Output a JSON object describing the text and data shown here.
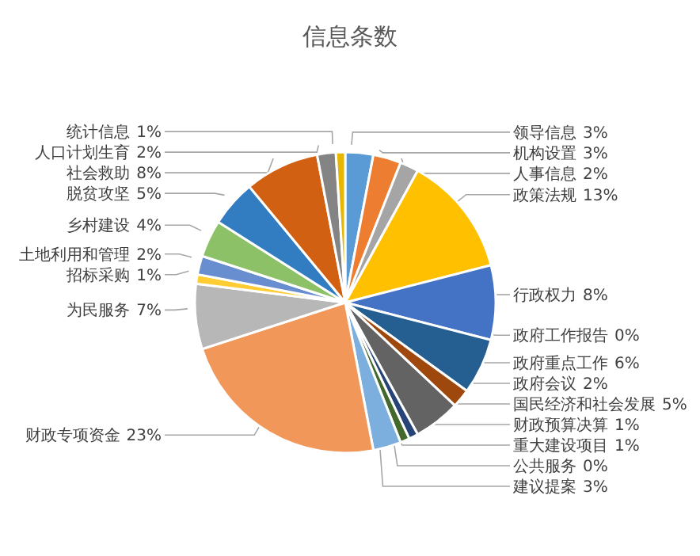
{
  "chart_data": {
    "type": "pie",
    "title": "信息条数",
    "categories": [
      "领导信息",
      "机构设置",
      "人事信息",
      "政策法规",
      "行政权力",
      "政府工作报告",
      "政府重点工作",
      "政府会议",
      "国民经济和社会发展",
      "财政预算决算",
      "重大建设项目",
      "公共服务",
      "建议提案",
      "财政专项资金",
      "为民服务",
      "招标采购",
      "土地利用和管理",
      "乡村建设",
      "脱贫攻坚",
      "社会救助",
      "人口计划生育",
      "统计信息"
    ],
    "values": [
      3,
      3,
      2,
      13,
      8,
      0,
      6,
      2,
      5,
      1,
      1,
      0,
      3,
      23,
      7,
      1,
      2,
      4,
      5,
      8,
      2,
      1
    ],
    "value_labels": [
      "3%",
      "3%",
      "2%",
      "13%",
      "8%",
      "0%",
      "6%",
      "2%",
      "5%",
      "1%",
      "1%",
      "0%",
      "3%",
      "23%",
      "7%",
      "1%",
      "2%",
      "4%",
      "5%",
      "8%",
      "2%",
      "1%"
    ],
    "colors": [
      "#5b9bd5",
      "#ed7d31",
      "#a5a5a5",
      "#ffc000",
      "#4472c4",
      "#70ad47",
      "#255e91",
      "#9e480e",
      "#636363",
      "#264478",
      "#43682b",
      "#997300",
      "#7cafdd",
      "#f1975a",
      "#b7b7b7",
      "#ffcd33",
      "#698ed0",
      "#8cc168",
      "#327dc2",
      "#d26012",
      "#848484",
      "#e6b600"
    ]
  }
}
